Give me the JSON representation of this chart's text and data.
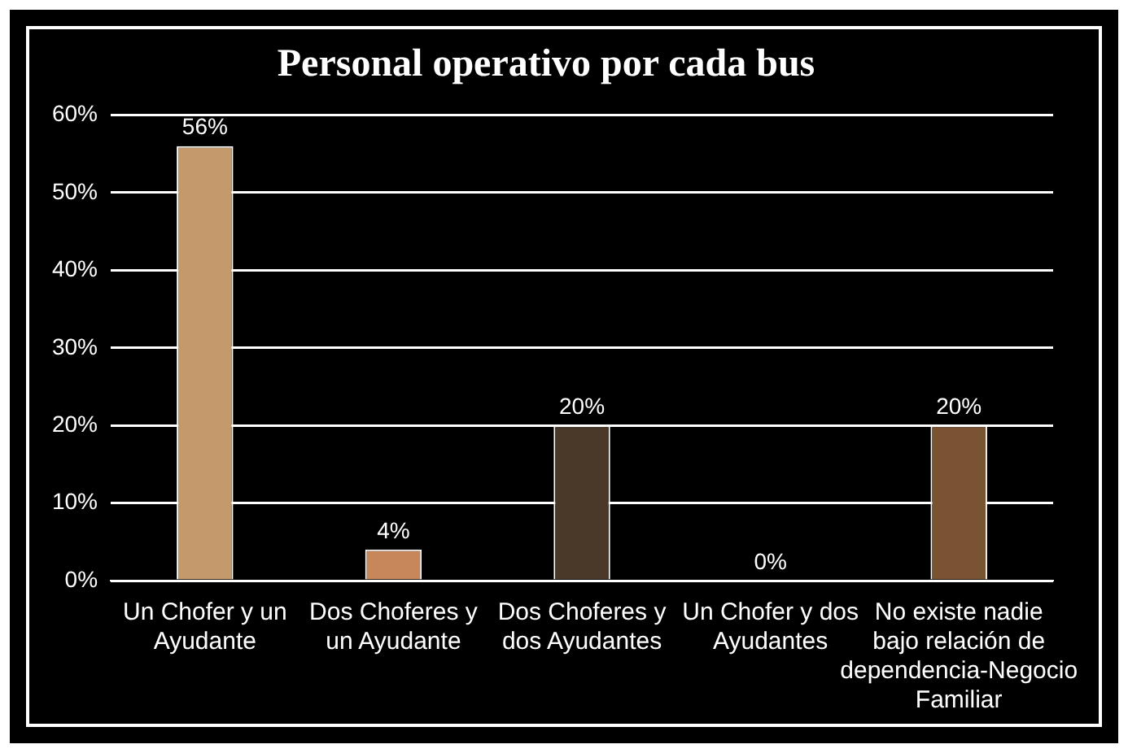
{
  "chart_data": {
    "type": "bar",
    "title": "Personal operativo por cada bus",
    "categories": [
      "Un Chofer y un Ayudante",
      "Dos Choferes y un Ayudante",
      "Dos Choferes y dos Ayudantes",
      "Un Chofer y dos Ayudantes",
      "No existe nadie bajo relación de dependencia-Negocio Familiar"
    ],
    "values": [
      56,
      4,
      20,
      0,
      20
    ],
    "colors": [
      "#c49a6c",
      "#c8875a",
      "#4a3828",
      "#6a4a2e",
      "#7a5432"
    ],
    "value_labels": [
      "56%",
      "4%",
      "20%",
      "0%",
      "20%"
    ],
    "ylim": [
      0,
      60
    ],
    "yticks": [
      {
        "value": 0,
        "label": "0%"
      },
      {
        "value": 10,
        "label": "10%"
      },
      {
        "value": 20,
        "label": "20%"
      },
      {
        "value": 30,
        "label": "30%"
      },
      {
        "value": 40,
        "label": "40%"
      },
      {
        "value": 50,
        "label": "50%"
      },
      {
        "value": 60,
        "label": "60%"
      }
    ],
    "grid": "y",
    "legend": false
  }
}
